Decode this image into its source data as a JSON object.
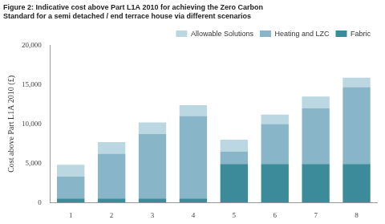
{
  "chart_data": {
    "type": "bar",
    "title": "Figure 2: Indicative cost above Part L1A 2010 for achieving the Zero Carbon Standard for a semi detached / end terrace house via different scenarios",
    "y_label": "Cost above Part L1A 2010 (£)",
    "categories": [
      "1",
      "2",
      "3",
      "4",
      "5",
      "6",
      "7",
      "8"
    ],
    "series": [
      {
        "name": "Fabric",
        "color": "#3b8b9b",
        "values": [
          500,
          500,
          500,
          500,
          4900,
          4900,
          4900,
          4900
        ]
      },
      {
        "name": "Heating and LZC",
        "color": "#88b5c7",
        "values": [
          2800,
          5700,
          8200,
          10500,
          1600,
          5100,
          7100,
          9800
        ]
      },
      {
        "name": "Allowable Solutions",
        "color": "#bad7e2",
        "values": [
          1500,
          1500,
          1500,
          1400,
          1500,
          1200,
          1500,
          1200
        ]
      }
    ],
    "ylim": [
      0,
      20000
    ],
    "yticks": [
      0,
      {
        "value": 5000,
        "label": "5,000"
      },
      {
        "value": 10000,
        "label": "10,000"
      },
      {
        "value": 15000,
        "label": "15,000"
      },
      {
        "value": 20000,
        "label": "20,000"
      }
    ],
    "stacked": true,
    "grid": false,
    "legend": "top-right"
  }
}
